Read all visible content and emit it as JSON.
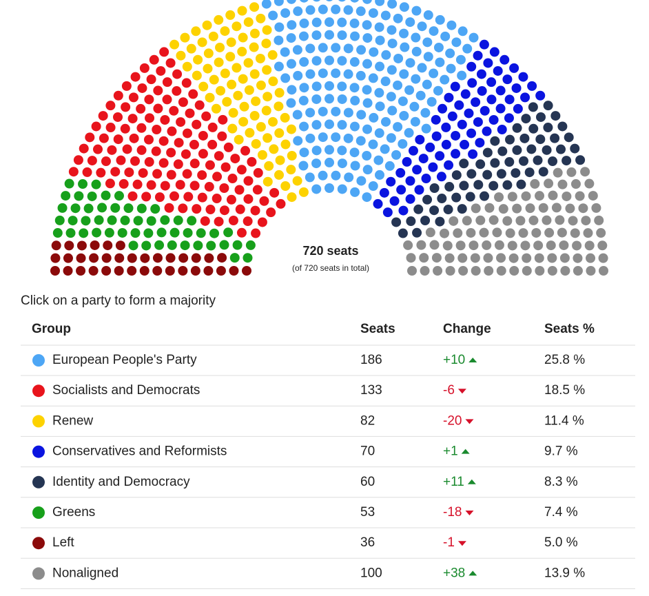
{
  "chart_data": {
    "type": "parliament",
    "center_label": "720 seats",
    "center_sublabel": "(of 720 seats in total)",
    "series": [
      {
        "name": "European People's Party",
        "color": "#4da6f5",
        "values": [
          186
        ],
        "change": {
          "value": 10,
          "label": "+10"
        },
        "share": {
          "value": 25.8,
          "label": "25.8 %"
        }
      },
      {
        "name": "Socialists and Democrats",
        "color": "#e8141c",
        "values": [
          133
        ],
        "change": -6,
        "share": {
          "value": 18.5,
          "label": "18.5 %"
        }
      },
      {
        "name": "Renew",
        "color": "#fdd200",
        "values": [
          82
        ],
        "change": -20,
        "share": {
          "value": 11.4,
          "label": "11.4 %"
        }
      },
      {
        "name": "Conservatives and Reformists",
        "color": "#0a14e0",
        "values": [
          70
        ],
        "change": {
          "value": 1,
          "label": "+1"
        },
        "share": {
          "value": 9.7,
          "label": "9.7 %"
        }
      },
      {
        "name": "Identity and Democracy",
        "color": "#253553",
        "values": [
          60
        ],
        "change": {
          "value": 11,
          "label": "+11"
        },
        "share": {
          "value": 8.3,
          "label": "8.3 %"
        }
      },
      {
        "name": "Greens",
        "color": "#17a01b",
        "values": [
          53
        ],
        "change": -18,
        "share": {
          "value": 7.4,
          "label": "7.4 %"
        }
      },
      {
        "name": "Left",
        "color": "#8b0a0a",
        "values": [
          36
        ],
        "change": -1,
        "share": {
          "value": 5.0,
          "label": "5.0 %"
        }
      },
      {
        "name": "Nonaligned",
        "color": "#8c8c8c",
        "values": [
          100
        ],
        "change": {
          "value": 38,
          "label": "+38"
        },
        "share": {
          "value": 13.9,
          "label": "13.9 %"
        }
      }
    ]
  },
  "instruction": "Click on a party to form a majority",
  "table": {
    "headers": [
      "Group",
      "Seats",
      "Change",
      "Seats %"
    ]
  }
}
